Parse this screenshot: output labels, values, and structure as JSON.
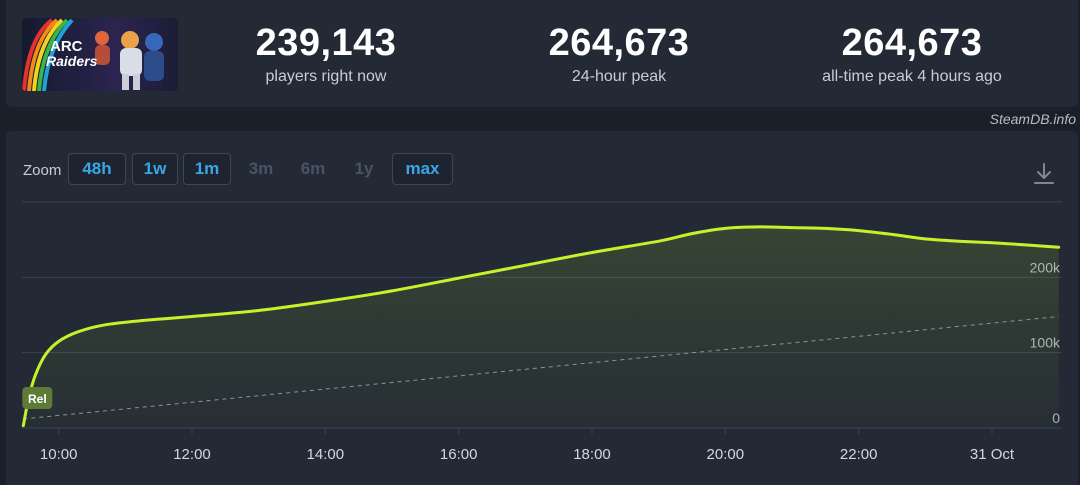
{
  "game": {
    "logo_text": [
      "ARC",
      "Raiders"
    ]
  },
  "stats": [
    {
      "value": "239,143",
      "label": "players right now"
    },
    {
      "value": "264,673",
      "label": "24-hour peak"
    },
    {
      "value": "264,673",
      "label": "all-time peak 4 hours ago"
    }
  ],
  "watermark": "SteamDB.info",
  "toolbar": {
    "zoom_label": "Zoom",
    "buttons": [
      {
        "label": "48h",
        "enabled": true
      },
      {
        "label": "1w",
        "enabled": true
      },
      {
        "label": "1m",
        "enabled": true
      },
      {
        "label": "3m",
        "enabled": false
      },
      {
        "label": "6m",
        "enabled": false
      },
      {
        "label": "1y",
        "enabled": false
      },
      {
        "label": "max",
        "enabled": true
      }
    ],
    "download_icon": "download-icon"
  },
  "colors": {
    "line": "#c5f22a",
    "accent": "#3aa6e8",
    "panel": "#232a35",
    "marker": "#5d7a37"
  },
  "chart_data": {
    "type": "line",
    "title": "",
    "xlabel": "",
    "ylabel": "",
    "ylim": [
      0,
      300000
    ],
    "yticks": [
      {
        "value": 0,
        "label": "0"
      },
      {
        "value": 100000,
        "label": "100k"
      },
      {
        "value": 200000,
        "label": "200k"
      }
    ],
    "xlim": [
      9.45,
      25.05
    ],
    "xticks": [
      {
        "value": 10,
        "label": "10:00"
      },
      {
        "value": 12,
        "label": "12:00"
      },
      {
        "value": 14,
        "label": "14:00"
      },
      {
        "value": 16,
        "label": "16:00"
      },
      {
        "value": 18,
        "label": "18:00"
      },
      {
        "value": 20,
        "label": "20:00"
      },
      {
        "value": 22,
        "label": "22:00"
      },
      {
        "value": 24,
        "label": "31 Oct"
      }
    ],
    "grid": true,
    "legend": "none",
    "series": [
      {
        "x": [
          9.47,
          9.55,
          9.65,
          9.8,
          10.0,
          10.3,
          10.7,
          11.3,
          12.0,
          13.0,
          14.0,
          15.0,
          16.0,
          17.0,
          18.0,
          19.0,
          19.5,
          20.0,
          20.5,
          21.0,
          21.5,
          22.0,
          22.5,
          23.0,
          23.5,
          24.0,
          24.5,
          25.0
        ],
        "y": [
          3000,
          40000,
          70000,
          97000,
          115000,
          128000,
          137000,
          143000,
          148000,
          156000,
          168000,
          182000,
          199000,
          216000,
          233000,
          248000,
          258000,
          265000,
          267000,
          266000,
          265000,
          262000,
          257000,
          251000,
          248000,
          246000,
          243000,
          240000
        ]
      },
      {
        "x": [
          9.47,
          25.0
        ],
        "y": [
          12000,
          148000
        ],
        "style": "dashed"
      }
    ],
    "annotations": [
      {
        "x": 9.65,
        "y": 40000,
        "label": "Rel"
      }
    ]
  }
}
